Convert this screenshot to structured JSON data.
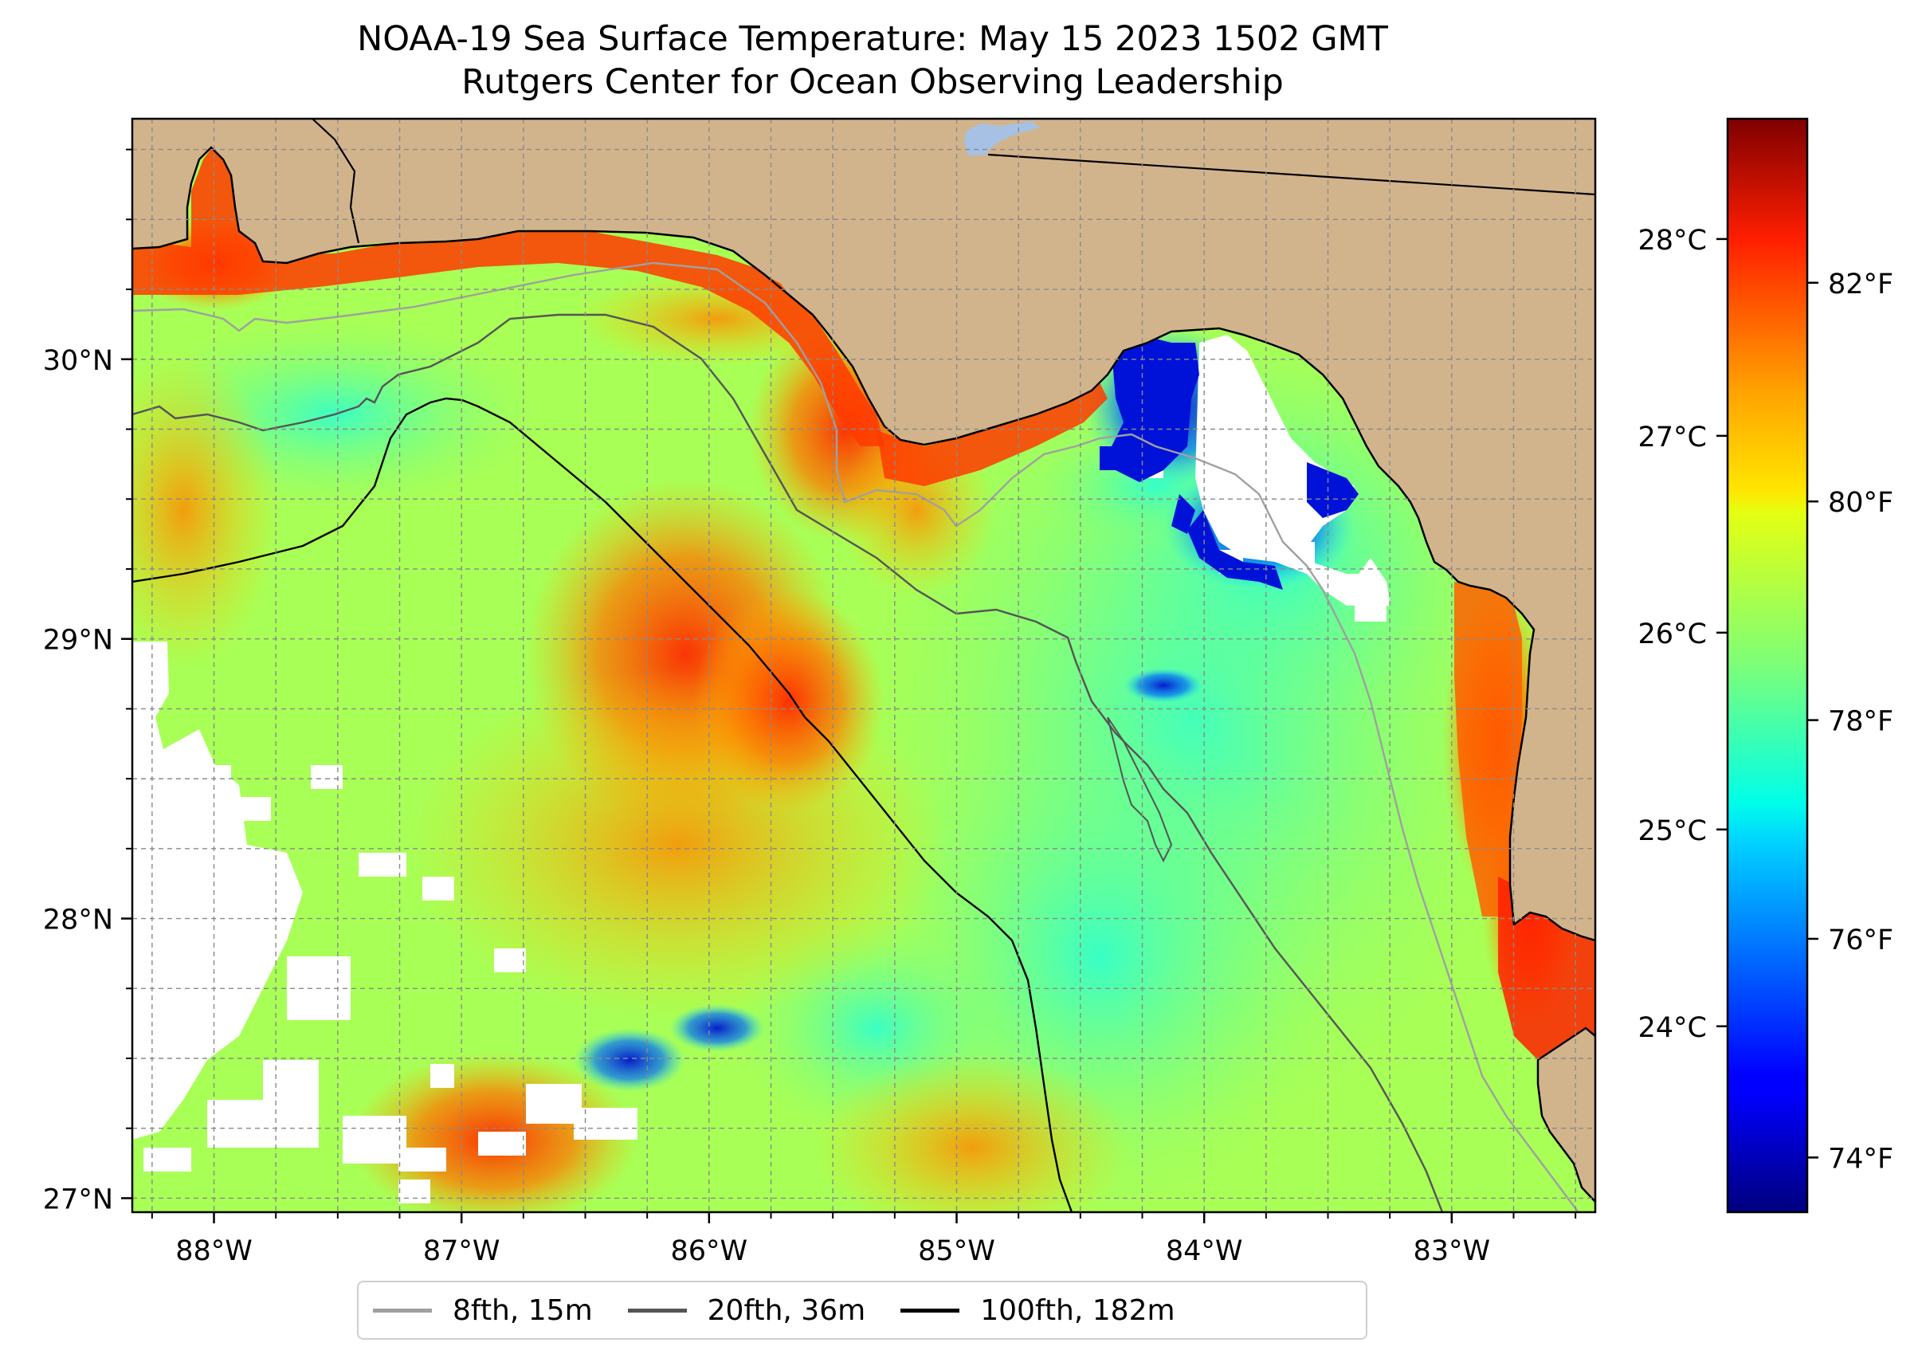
{
  "title": {
    "line1": "NOAA-19 Sea Surface Temperature: May 15 2023 1502 GMT",
    "line2": "Rutgers Center for Ocean Observing Leadership"
  },
  "map": {
    "region": "Northeastern Gulf of Mexico / Florida Big Bend",
    "lon_range": [
      -88.33,
      -82.42
    ],
    "lat_range": [
      26.95,
      30.86
    ],
    "lat_ticks": [
      {
        "value": 30,
        "label": "30°N"
      },
      {
        "value": 29,
        "label": "29°N"
      },
      {
        "value": 28,
        "label": "28°N"
      },
      {
        "value": 27,
        "label": "27°N"
      }
    ],
    "lon_ticks": [
      {
        "value": -88,
        "label": "88°W"
      },
      {
        "value": -87,
        "label": "87°W"
      },
      {
        "value": -86,
        "label": "86°W"
      },
      {
        "value": -85,
        "label": "85°W"
      },
      {
        "value": -84,
        "label": "84°W"
      },
      {
        "value": -83,
        "label": "83°W"
      }
    ],
    "colors": {
      "land": "#d2b48c",
      "lake": "#a6c1e4",
      "no_data": "#ffffff",
      "iso_8fth": "#a0a0a0",
      "iso_20fth": "#555555",
      "iso_100fth": "#000000"
    }
  },
  "colorbar": {
    "colormap": "jet",
    "range_f": [
      73.5,
      83.5
    ],
    "fahrenheit_ticks": [
      {
        "value": 82,
        "label": "82°F"
      },
      {
        "value": 80,
        "label": "80°F"
      },
      {
        "value": 78,
        "label": "78°F"
      },
      {
        "value": 76,
        "label": "76°F"
      },
      {
        "value": 74,
        "label": "74°F"
      }
    ],
    "celsius_ticks": [
      {
        "value": 28,
        "label": "28°C"
      },
      {
        "value": 27,
        "label": "27°C"
      },
      {
        "value": 26,
        "label": "26°C"
      },
      {
        "value": 25,
        "label": "25°C"
      },
      {
        "value": 24,
        "label": "24°C"
      }
    ]
  },
  "legend": {
    "items": [
      {
        "label": "8fth, 15m",
        "color": "#a0a0a0"
      },
      {
        "label": "20fth, 36m",
        "color": "#555555"
      },
      {
        "label": "100fth, 182m",
        "color": "#000000"
      }
    ]
  }
}
